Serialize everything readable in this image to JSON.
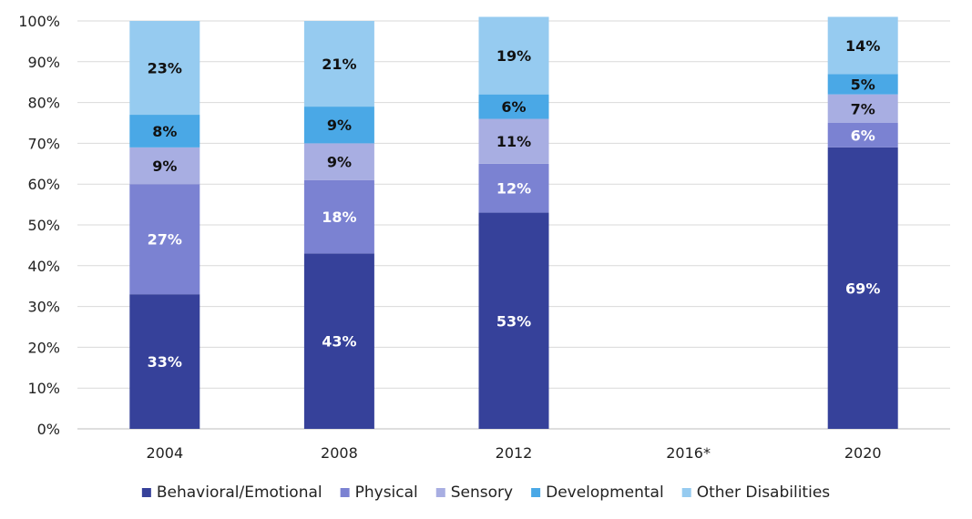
{
  "chart_data": {
    "type": "bar",
    "stacked": true,
    "percent_axis": true,
    "title": "",
    "xlabel": "",
    "ylabel": "",
    "ylim": [
      0,
      100
    ],
    "y_ticks": [
      "0%",
      "10%",
      "20%",
      "30%",
      "40%",
      "50%",
      "60%",
      "70%",
      "80%",
      "90%",
      "100%"
    ],
    "grid": true,
    "legend_position": "bottom",
    "categories": [
      "2004",
      "2008",
      "2012",
      "2016*",
      "2020"
    ],
    "series": [
      {
        "name": "Behavioral/Emotional",
        "color": "#36419a",
        "label_color": "#ffffff",
        "values": [
          33,
          43,
          53,
          null,
          69
        ]
      },
      {
        "name": "Physical",
        "color": "#7b82d2",
        "label_color": "#ffffff",
        "values": [
          27,
          18,
          12,
          null,
          6
        ]
      },
      {
        "name": "Sensory",
        "color": "#a8aee2",
        "label_color": "#111111",
        "values": [
          9,
          9,
          11,
          null,
          7
        ]
      },
      {
        "name": "Developmental",
        "color": "#4aa8e6",
        "label_color": "#111111",
        "values": [
          8,
          9,
          6,
          null,
          5
        ]
      },
      {
        "name": "Other Disabilities",
        "color": "#96cbf0",
        "label_color": "#111111",
        "values": [
          23,
          21,
          19,
          null,
          14
        ]
      }
    ],
    "data_labels": [
      [
        "33%",
        "43%",
        "53%",
        null,
        "69%"
      ],
      [
        "27%",
        "18%",
        "12%",
        null,
        "6%"
      ],
      [
        "9%",
        "9%",
        "11%",
        null,
        "7%"
      ],
      [
        "8%",
        "9%",
        "6%",
        null,
        "5%"
      ],
      [
        "23%",
        "21%",
        "19%",
        null,
        "14%"
      ]
    ]
  }
}
